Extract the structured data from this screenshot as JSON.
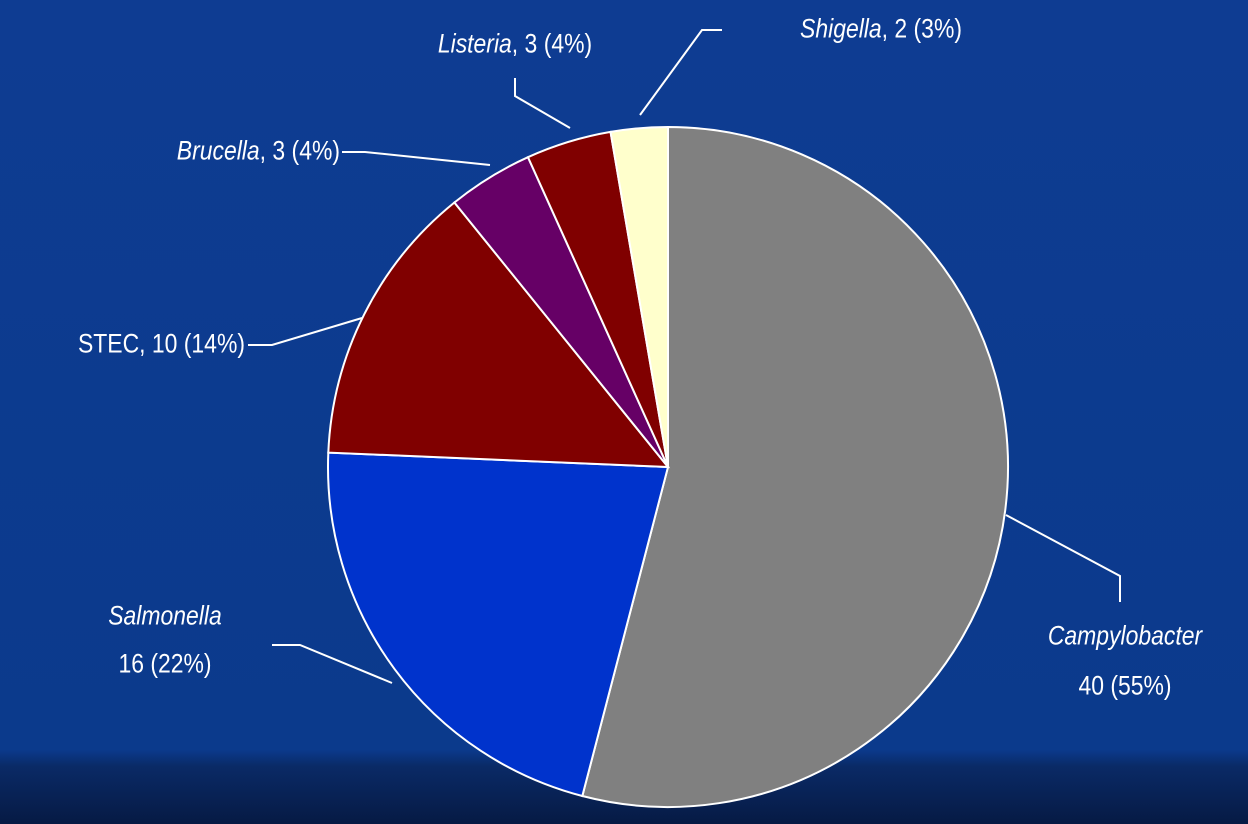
{
  "chart_data": {
    "type": "pie",
    "categories": [
      "Campylobacter",
      "Salmonella",
      "STEC",
      "Brucella",
      "Listeria",
      "Shigella"
    ],
    "values": [
      40,
      16,
      10,
      3,
      3,
      2
    ],
    "value_labels": [
      "40 (55%)",
      "16 (22%)",
      ", 10 (14%)",
      ", 3 (4%)",
      ", 3 (4%)",
      ", 2 (3%)"
    ],
    "colors": [
      "#808080",
      "#0033cc",
      "#800000",
      "#660066",
      "#800000",
      "#ffffcc"
    ]
  }
}
